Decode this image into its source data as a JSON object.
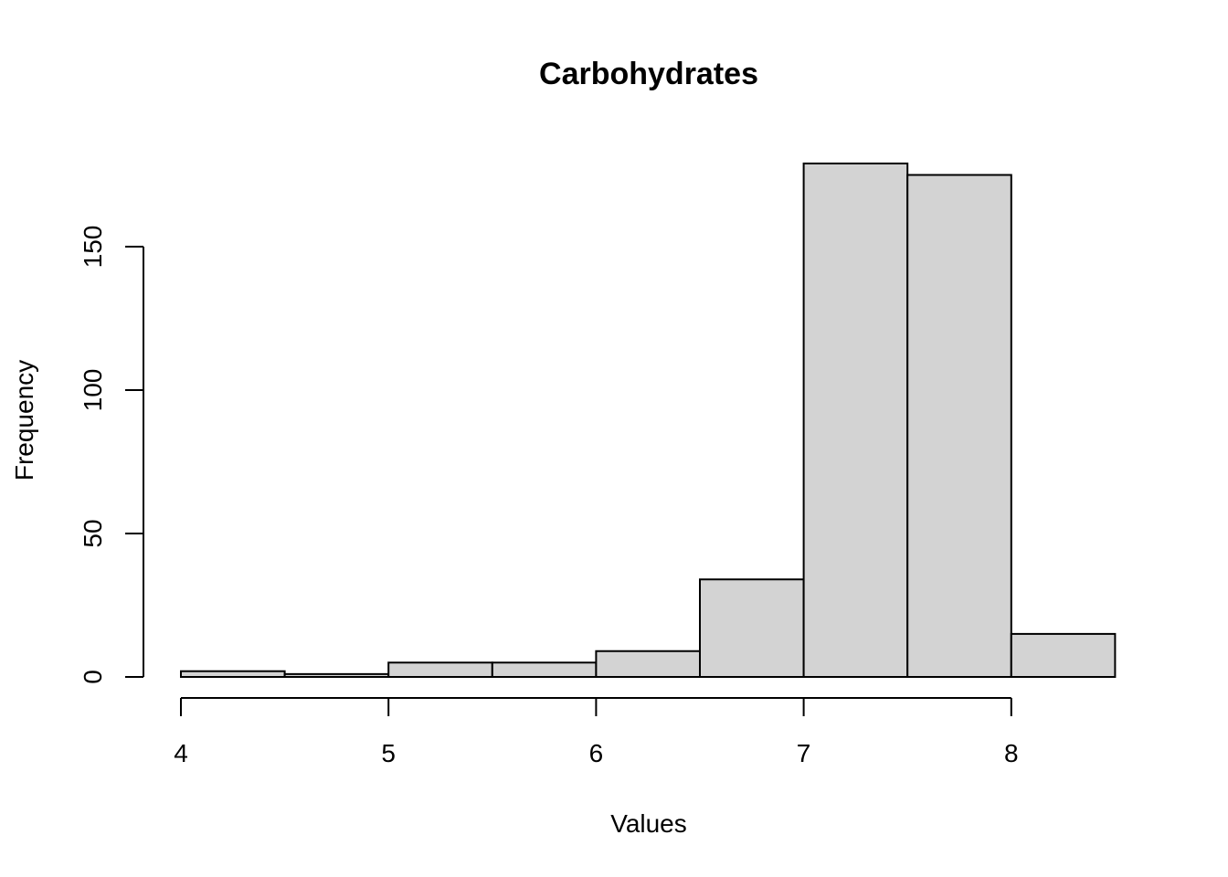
{
  "chart_data": {
    "type": "bar",
    "title": "Carbohydrates",
    "xlabel": "Values",
    "ylabel": "Frequency",
    "bins": [
      {
        "start": 4.0,
        "end": 4.5,
        "count": 2
      },
      {
        "start": 4.5,
        "end": 5.0,
        "count": 1
      },
      {
        "start": 5.0,
        "end": 5.5,
        "count": 5
      },
      {
        "start": 5.5,
        "end": 6.0,
        "count": 5
      },
      {
        "start": 6.0,
        "end": 6.5,
        "count": 9
      },
      {
        "start": 6.5,
        "end": 7.0,
        "count": 34
      },
      {
        "start": 7.0,
        "end": 7.5,
        "count": 179
      },
      {
        "start": 7.5,
        "end": 8.0,
        "count": 175
      },
      {
        "start": 8.0,
        "end": 8.5,
        "count": 15
      }
    ],
    "x_ticks": [
      4,
      5,
      6,
      7,
      8
    ],
    "y_ticks": [
      0,
      50,
      100,
      150
    ],
    "xlim": [
      4,
      8
    ],
    "ylim": [
      0,
      179
    ],
    "bar_fill": "#d3d3d3",
    "bar_stroke": "#000000",
    "grid": false,
    "legend": "none"
  }
}
